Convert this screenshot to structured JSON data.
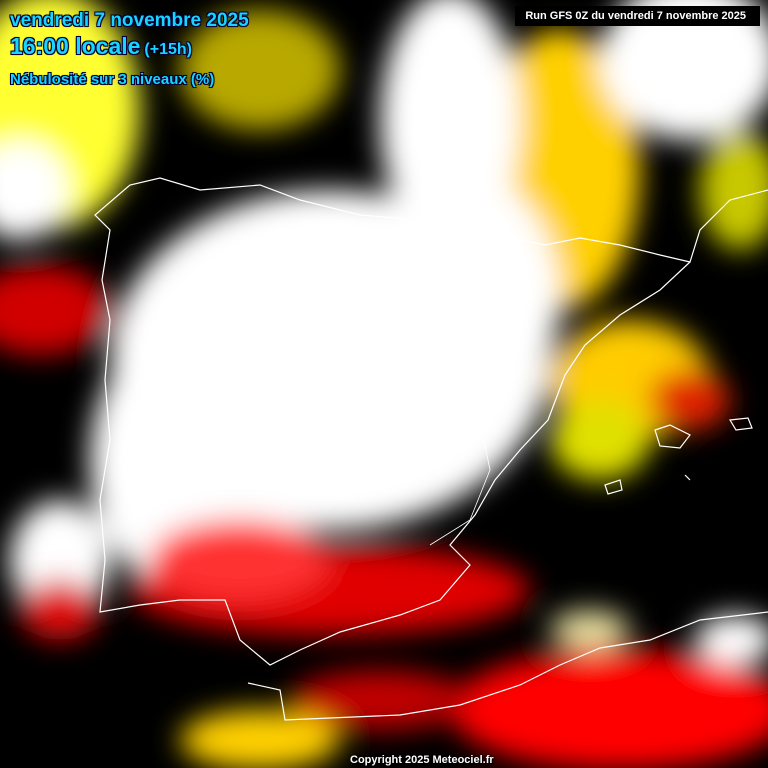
{
  "header": {
    "date": "vendredi 7 novembre 2025",
    "time": "16:00 locale",
    "lead": "(+15h)",
    "parameter": "Nébulosité sur 3 niveaux (%)"
  },
  "run_info": "Run GFS 0Z du vendredi 7 novembre 2025",
  "copyright": "Copyright 2025 Meteociel.fr",
  "colors": {
    "label_text": "#19d4ff",
    "clear": "#000000",
    "low_cloud": "#ff0000",
    "mid_cloud": "#ffff00",
    "high_cloud": "#ffffff",
    "coastline": "#ffffff"
  }
}
